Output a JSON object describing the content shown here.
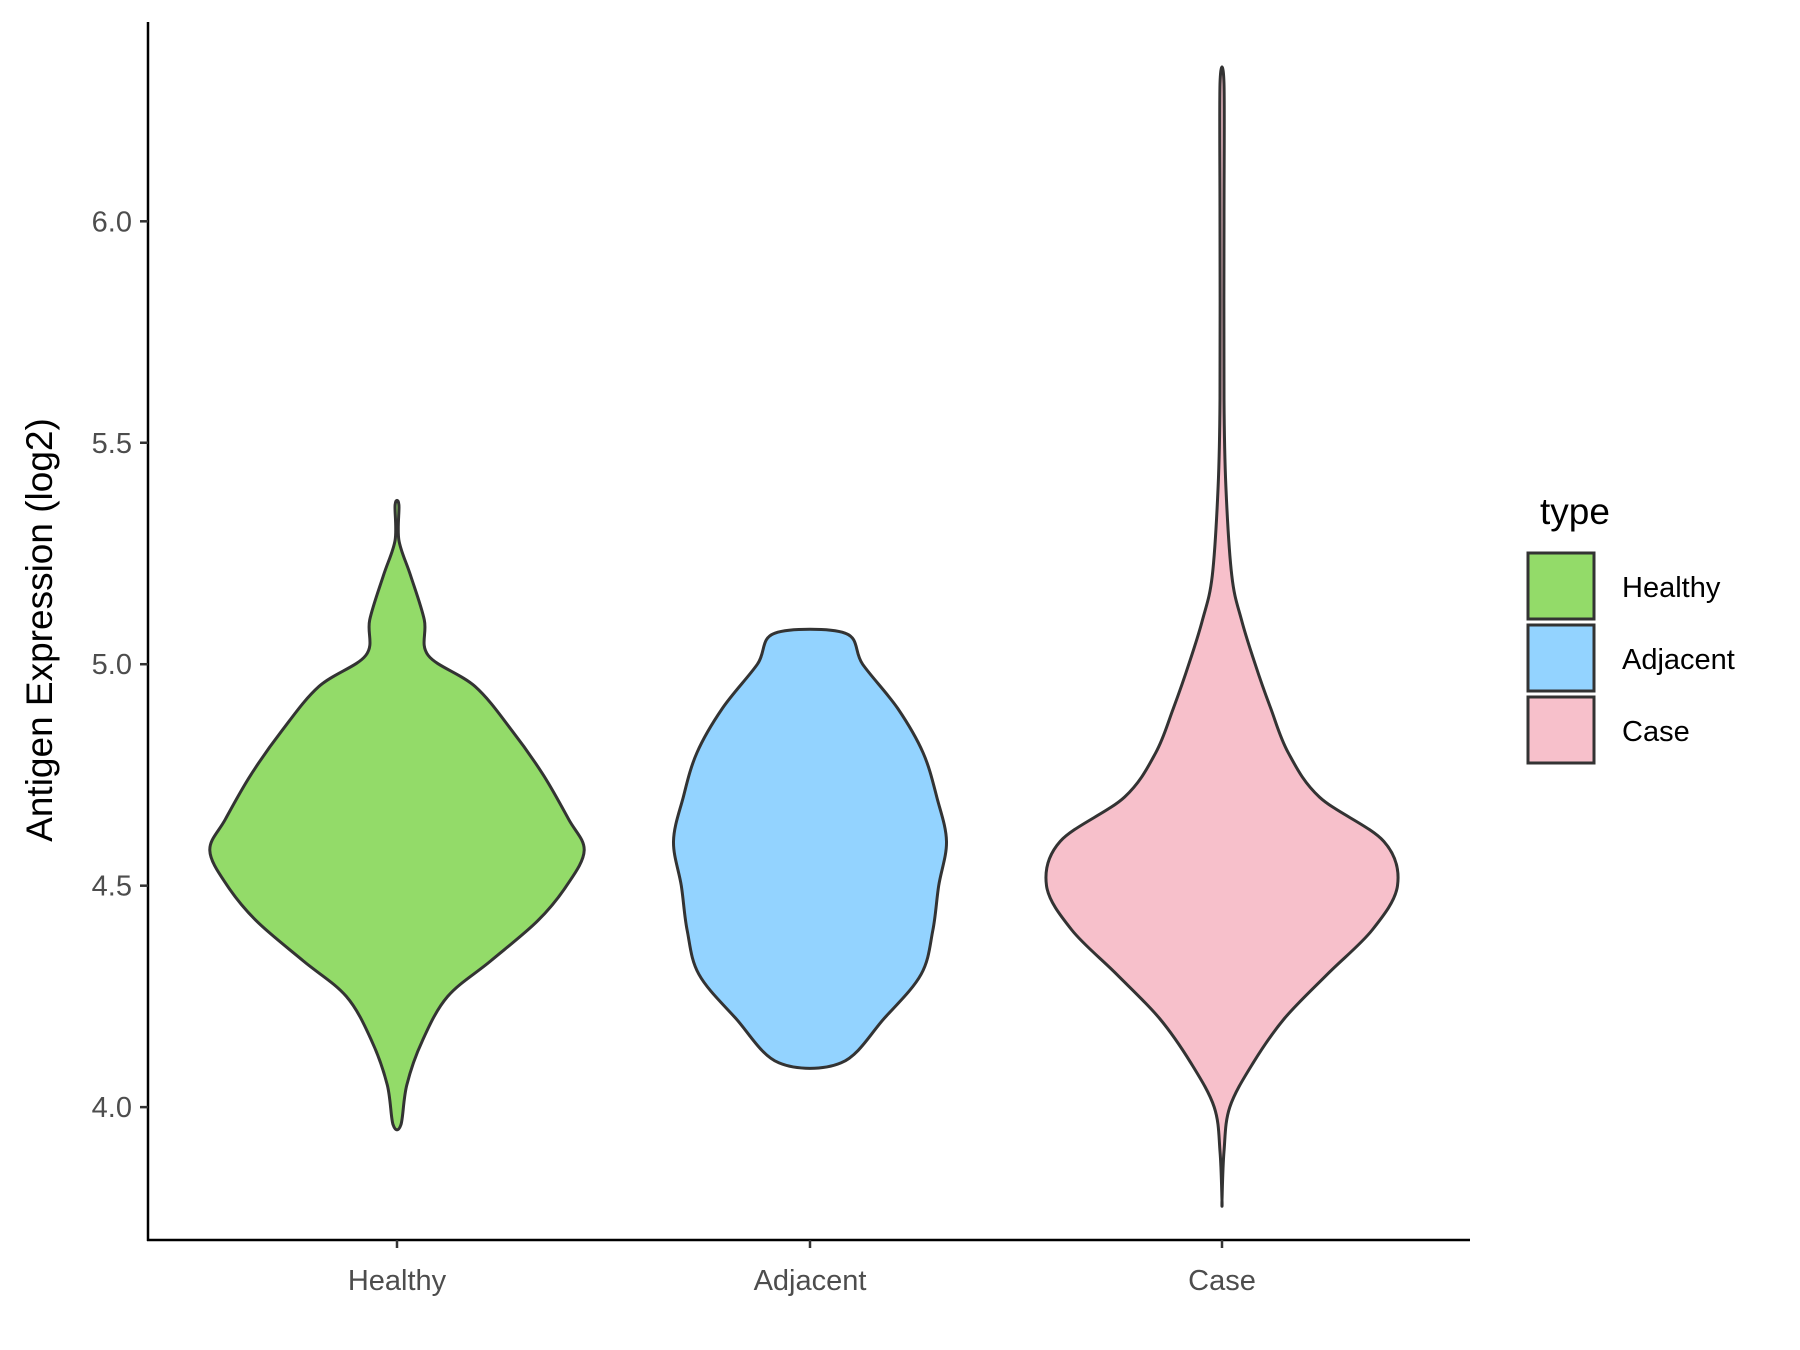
{
  "chart_data": {
    "type": "violin",
    "title": "",
    "xlabel": "",
    "ylabel": "Antigen Expression (log2)",
    "ylim": [
      3.7,
      6.45
    ],
    "yticks": [
      4.0,
      4.5,
      5.0,
      5.5,
      6.0
    ],
    "ytick_labels": [
      "4.0",
      "4.5",
      "5.0",
      "5.5",
      "6.0"
    ],
    "categories": [
      "Healthy",
      "Adjacent",
      "Case"
    ],
    "legend": {
      "title": "type",
      "position": "right",
      "entries": [
        "Healthy",
        "Adjacent",
        "Case"
      ]
    },
    "grid": false,
    "series": [
      {
        "name": "Healthy",
        "color": "#93DB69",
        "y_min": 3.96,
        "y_max": 5.36,
        "density_profile": [
          [
            3.96,
            0.02
          ],
          [
            4.05,
            0.05
          ],
          [
            4.15,
            0.13
          ],
          [
            4.25,
            0.26
          ],
          [
            4.33,
            0.48
          ],
          [
            4.42,
            0.72
          ],
          [
            4.5,
            0.87
          ],
          [
            4.58,
            0.96
          ],
          [
            4.65,
            0.88
          ],
          [
            4.75,
            0.75
          ],
          [
            4.85,
            0.59
          ],
          [
            4.95,
            0.4
          ],
          [
            5.02,
            0.16
          ],
          [
            5.1,
            0.14
          ],
          [
            5.2,
            0.07
          ],
          [
            5.28,
            0.01
          ],
          [
            5.36,
            0.01
          ]
        ]
      },
      {
        "name": "Adjacent",
        "color": "#93D3FF",
        "y_min": 4.1,
        "y_max": 5.07,
        "density_profile": [
          [
            4.1,
            0.16
          ],
          [
            4.2,
            0.38
          ],
          [
            4.3,
            0.57
          ],
          [
            4.4,
            0.63
          ],
          [
            4.5,
            0.66
          ],
          [
            4.6,
            0.7
          ],
          [
            4.7,
            0.65
          ],
          [
            4.8,
            0.58
          ],
          [
            4.9,
            0.45
          ],
          [
            5.0,
            0.27
          ],
          [
            5.07,
            0.18
          ]
        ]
      },
      {
        "name": "Case",
        "color": "#F7C0CB",
        "y_min": 3.79,
        "y_max": 6.31,
        "density_profile": [
          [
            3.79,
            0.0
          ],
          [
            3.9,
            0.01
          ],
          [
            4.0,
            0.04
          ],
          [
            4.1,
            0.16
          ],
          [
            4.2,
            0.32
          ],
          [
            4.3,
            0.54
          ],
          [
            4.4,
            0.77
          ],
          [
            4.5,
            0.9
          ],
          [
            4.6,
            0.83
          ],
          [
            4.7,
            0.5
          ],
          [
            4.8,
            0.34
          ],
          [
            4.9,
            0.25
          ],
          [
            5.0,
            0.17
          ],
          [
            5.1,
            0.1
          ],
          [
            5.2,
            0.05
          ],
          [
            5.4,
            0.02
          ],
          [
            5.6,
            0.01
          ],
          [
            6.0,
            0.01
          ],
          [
            6.31,
            0.01
          ]
        ]
      }
    ]
  }
}
